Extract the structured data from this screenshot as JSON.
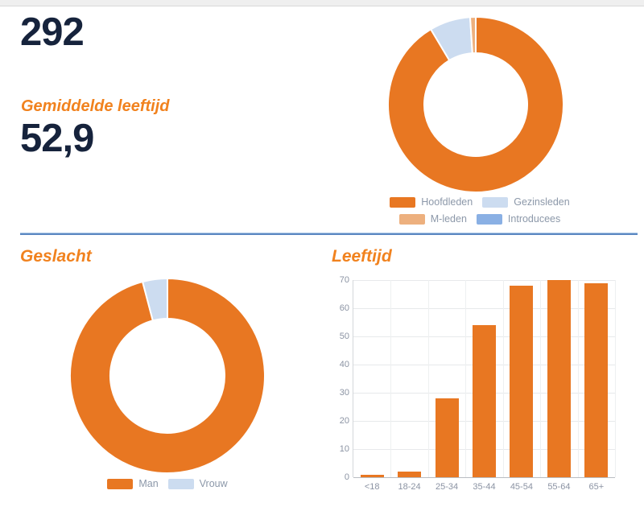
{
  "stats": {
    "total_members": "292",
    "avg_age_label": "Gemiddelde leeftijd",
    "avg_age_value": "52,9"
  },
  "colors": {
    "navy_text": "#16233c",
    "orange_title": "#f1821e",
    "chart_orange": "#e87722",
    "light_blue": "#ccdcf0",
    "peach": "#edb07e",
    "medium_blue": "#8ab0e4",
    "legend_text": "#8c98a9",
    "axis_text": "#8b93a3",
    "gridline": "#e7e9eb",
    "divider_blue": "#5c88c2"
  },
  "chart_data": [
    {
      "id": "members_donut",
      "type": "pie",
      "subtype": "donut",
      "labels": [
        "Hoofdleden",
        "Gezinsleden",
        "M-leden",
        "Introducees"
      ],
      "values": [
        267,
        22,
        3,
        0
      ],
      "values_pct": [
        91.4,
        7.5,
        1.1,
        0
      ],
      "colors": [
        "#e87722",
        "#ccdcf0",
        "#edb07e",
        "#8ab0e4"
      ],
      "legend_position": "bottom",
      "start_angle_deg": 0,
      "direction": "clockwise"
    },
    {
      "id": "gender_donut",
      "type": "pie",
      "subtype": "donut",
      "title": "Geslacht",
      "labels": [
        "Man",
        "Vrouw"
      ],
      "values": [
        280,
        12
      ],
      "values_pct": [
        95.9,
        4.1
      ],
      "colors": [
        "#e87722",
        "#ccdcf0"
      ],
      "legend_position": "bottom",
      "start_angle_deg": 0,
      "direction": "clockwise"
    },
    {
      "id": "age_bar",
      "type": "bar",
      "title": "Leeftijd",
      "categories": [
        "<18",
        "18-24",
        "25-34",
        "35-44",
        "45-54",
        "55-64",
        "65+"
      ],
      "values": [
        1,
        2,
        28,
        54,
        68,
        70,
        69
      ],
      "bar_color": "#e87722",
      "ylim": [
        0,
        70
      ],
      "yticks": [
        0,
        10,
        20,
        30,
        40,
        50,
        60,
        70
      ],
      "grid": true,
      "legend_position": "none"
    }
  ]
}
